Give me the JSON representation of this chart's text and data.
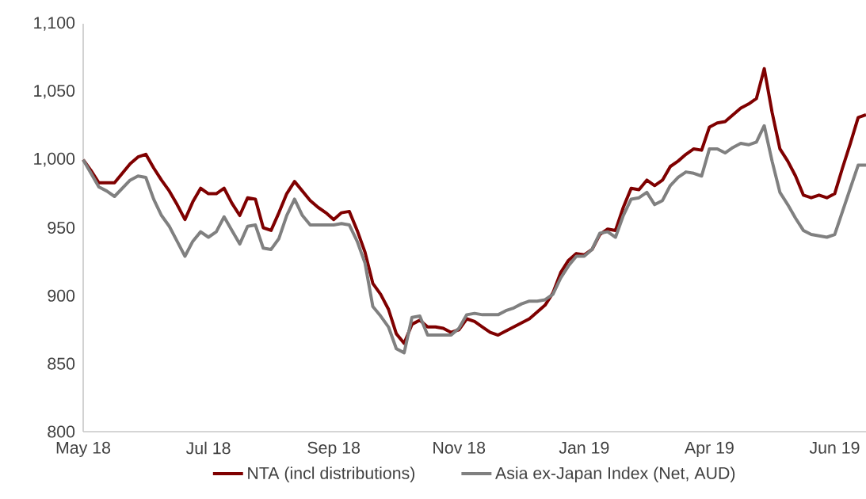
{
  "chart_data": {
    "type": "line",
    "categories": [
      "May 18",
      null,
      null,
      null,
      null,
      null,
      null,
      null,
      null,
      null,
      null,
      null,
      null,
      null,
      null,
      null,
      "Jul 18",
      null,
      null,
      null,
      null,
      null,
      null,
      null,
      null,
      null,
      null,
      null,
      null,
      null,
      null,
      null,
      "Sep 18",
      null,
      null,
      null,
      null,
      null,
      null,
      null,
      null,
      null,
      null,
      null,
      null,
      null,
      null,
      null,
      "Nov 18",
      null,
      null,
      null,
      null,
      null,
      null,
      null,
      null,
      null,
      null,
      null,
      null,
      null,
      null,
      null,
      "Jan 19",
      null,
      null,
      null,
      null,
      null,
      null,
      null,
      null,
      null,
      null,
      null,
      null,
      null,
      null,
      null,
      "Apr 19",
      null,
      null,
      null,
      null,
      null,
      null,
      null,
      null,
      null,
      null,
      null,
      null,
      null,
      null,
      null,
      "Jun 19",
      null,
      null,
      null,
      null
    ],
    "ylim": [
      800,
      1100
    ],
    "yticks": [
      800,
      850,
      900,
      950,
      {
        "value": 1000,
        "label": "1,000"
      },
      {
        "value": 1050,
        "label": "1,050"
      },
      {
        "value": 1100,
        "label": "1,100"
      }
    ],
    "series": [
      {
        "name": "NTA (incl distributions)",
        "color": "#7f0000",
        "values": [
          1000,
          992,
          983,
          983,
          983,
          990,
          997,
          1002,
          1004,
          994,
          985,
          977,
          967,
          956,
          969,
          979,
          975,
          975,
          979,
          968,
          959,
          972,
          971,
          950,
          948,
          961,
          975,
          984,
          977,
          970,
          965,
          961,
          956,
          961,
          962,
          948,
          932,
          909,
          901,
          890,
          872,
          865,
          879,
          882,
          877,
          877,
          876,
          873,
          875,
          883,
          881,
          877,
          873,
          871,
          874,
          877,
          880,
          883,
          888,
          893,
          902,
          917,
          926,
          931,
          930,
          934,
          945,
          949,
          948,
          965,
          979,
          978,
          985,
          981,
          985,
          995,
          999,
          1004,
          1008,
          1007,
          1024,
          1027,
          1028,
          1033,
          1038,
          1041,
          1045,
          1067,
          1035,
          1008,
          999,
          988,
          974,
          972,
          974,
          972,
          975,
          994,
          1012,
          1031,
          1033
        ]
      },
      {
        "name": "Asia ex-Japan Index (Net, AUD)",
        "color": "#808080",
        "values": [
          1000,
          990,
          980,
          977,
          973,
          979,
          985,
          988,
          987,
          971,
          959,
          951,
          940,
          929,
          940,
          947,
          943,
          947,
          958,
          948,
          938,
          951,
          952,
          935,
          934,
          942,
          959,
          971,
          959,
          952,
          952,
          952,
          952,
          953,
          952,
          940,
          924,
          892,
          885,
          877,
          861,
          858,
          884,
          885,
          871,
          871,
          871,
          871,
          876,
          886,
          887,
          886,
          886,
          886,
          889,
          891,
          894,
          896,
          896,
          897,
          901,
          913,
          922,
          929,
          929,
          934,
          946,
          947,
          943,
          959,
          971,
          972,
          976,
          967,
          970,
          981,
          987,
          991,
          990,
          988,
          1008,
          1008,
          1005,
          1009,
          1012,
          1011,
          1013,
          1025,
          999,
          976,
          967,
          957,
          948,
          945,
          944,
          943,
          945,
          962,
          979,
          996,
          996
        ]
      }
    ],
    "legend": "bottom",
    "line_style": "solid",
    "marker": "none"
  }
}
